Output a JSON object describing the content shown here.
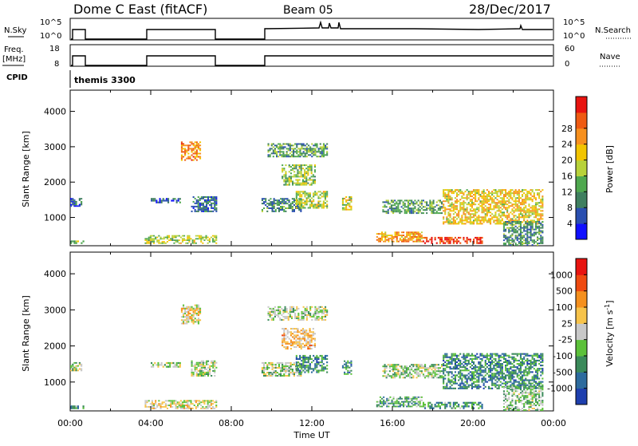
{
  "header": {
    "station": "Dome C East (fitACF)",
    "beam": "Beam 05",
    "date": "28/Dec/2017"
  },
  "strip_labels": {
    "nsky": "N.Sky",
    "nsky_hi": "10^5",
    "nsky_lo": "10^0",
    "nsearch": "N.Search",
    "nsearch_hi": "10^5",
    "nsearch_lo": "10^0",
    "freq_line1": "Freq.",
    "freq_line2": "[MHz]",
    "freq_hi": "18",
    "freq_lo": "8",
    "nave": "Nave",
    "nave_hi": "60",
    "nave_lo": "0",
    "cpid": "CPID",
    "cpid_value": "themis 3300"
  },
  "chart_data": [
    {
      "type": "heatmap",
      "name": "power",
      "ylabel": "Slant Range [km]",
      "ylim": [
        200,
        4600
      ],
      "yticks": [
        1000,
        2000,
        3000,
        4000
      ],
      "xlim": [
        0,
        24
      ],
      "colorbar": {
        "label": "Power [dB]",
        "ticks": [
          "4",
          "8",
          "12",
          "16",
          "20",
          "24",
          "28"
        ],
        "colors": [
          "#1010ff",
          "#2a4fb0",
          "#3f7f5f",
          "#4fa84f",
          "#b8d23a",
          "#f2c400",
          "#f7901e",
          "#ef5a12",
          "#e81410"
        ]
      },
      "regions": [
        {
          "t": [
            0.0,
            0.6
          ],
          "r": [
            1300,
            1550
          ],
          "level": 0.2
        },
        {
          "t": [
            0.0,
            0.7
          ],
          "r": [
            250,
            350
          ],
          "level": 0.45
        },
        {
          "t": [
            3.7,
            7.3
          ],
          "r": [
            250,
            500
          ],
          "level": 0.5
        },
        {
          "t": [
            5.5,
            6.5
          ],
          "r": [
            2600,
            3150
          ],
          "level": 0.75
        },
        {
          "t": [
            4.0,
            5.5
          ],
          "r": [
            1400,
            1550
          ],
          "level": 0.2
        },
        {
          "t": [
            6.0,
            7.3
          ],
          "r": [
            1150,
            1600
          ],
          "level": 0.25
        },
        {
          "t": [
            9.8,
            12.8
          ],
          "r": [
            2700,
            3100
          ],
          "level": 0.35
        },
        {
          "t": [
            10.5,
            12.2
          ],
          "r": [
            1900,
            2500
          ],
          "level": 0.45
        },
        {
          "t": [
            9.5,
            11.5
          ],
          "r": [
            1150,
            1550
          ],
          "level": 0.3
        },
        {
          "t": [
            11.2,
            12.8
          ],
          "r": [
            1250,
            1750
          ],
          "level": 0.5
        },
        {
          "t": [
            13.5,
            14.0
          ],
          "r": [
            1200,
            1600
          ],
          "level": 0.55
        },
        {
          "t": [
            15.2,
            17.5
          ],
          "r": [
            300,
            600
          ],
          "level": 0.7
        },
        {
          "t": [
            15.5,
            18.5
          ],
          "r": [
            1100,
            1500
          ],
          "level": 0.35
        },
        {
          "t": [
            17.5,
            20.5
          ],
          "r": [
            250,
            450
          ],
          "level": 0.9
        },
        {
          "t": [
            18.5,
            23.5
          ],
          "r": [
            800,
            1800
          ],
          "level": 0.6
        },
        {
          "t": [
            21.5,
            23.5
          ],
          "r": [
            200,
            900
          ],
          "level": 0.3
        }
      ]
    },
    {
      "type": "heatmap",
      "name": "velocity",
      "ylabel": "Slant Range [km]",
      "xlabel": "Time UT",
      "ylim": [
        200,
        4600
      ],
      "yticks": [
        1000,
        2000,
        3000,
        4000
      ],
      "xlim": [
        0,
        24
      ],
      "xticks": [
        "00:00",
        "04:00",
        "08:00",
        "12:00",
        "16:00",
        "20:00",
        "00:00"
      ],
      "colorbar": {
        "label": "Velocity [m s^-1]",
        "ticks": [
          "1000",
          "500",
          "100",
          "25",
          "-25",
          "-100",
          "-500",
          "-1000"
        ],
        "colors": [
          "#1e3fae",
          "#2d6b9e",
          "#3a8a5a",
          "#5cc13a",
          "#c8c8c8",
          "#f7c34a",
          "#f5901e",
          "#ef4a10",
          "#e81410"
        ]
      },
      "regions": [
        {
          "t": [
            0.0,
            0.6
          ],
          "r": [
            1300,
            1550
          ],
          "level": 0.45
        },
        {
          "t": [
            0.0,
            0.7
          ],
          "r": [
            250,
            350
          ],
          "level": 0.3
        },
        {
          "t": [
            3.7,
            7.3
          ],
          "r": [
            250,
            500
          ],
          "level": 0.55
        },
        {
          "t": [
            5.5,
            6.5
          ],
          "r": [
            2600,
            3150
          ],
          "level": 0.55
        },
        {
          "t": [
            4.0,
            5.5
          ],
          "r": [
            1400,
            1550
          ],
          "level": 0.45
        },
        {
          "t": [
            6.0,
            7.3
          ],
          "r": [
            1150,
            1600
          ],
          "level": 0.45
        },
        {
          "t": [
            9.8,
            12.8
          ],
          "r": [
            2700,
            3100
          ],
          "level": 0.45
        },
        {
          "t": [
            10.5,
            12.2
          ],
          "r": [
            1900,
            2500
          ],
          "level": 0.62
        },
        {
          "t": [
            9.5,
            11.5
          ],
          "r": [
            1150,
            1550
          ],
          "level": 0.45
        },
        {
          "t": [
            11.2,
            12.8
          ],
          "r": [
            1250,
            1750
          ],
          "level": 0.25
        },
        {
          "t": [
            13.5,
            14.0
          ],
          "r": [
            1200,
            1600
          ],
          "level": 0.28
        },
        {
          "t": [
            15.2,
            17.5
          ],
          "r": [
            300,
            600
          ],
          "level": 0.33
        },
        {
          "t": [
            15.5,
            18.5
          ],
          "r": [
            1100,
            1500
          ],
          "level": 0.45
        },
        {
          "t": [
            17.5,
            20.5
          ],
          "r": [
            250,
            450
          ],
          "level": 0.3
        },
        {
          "t": [
            18.5,
            23.5
          ],
          "r": [
            800,
            1800
          ],
          "level": 0.25
        },
        {
          "t": [
            21.5,
            23.5
          ],
          "r": [
            200,
            900
          ],
          "level": 0.4
        }
      ]
    }
  ]
}
